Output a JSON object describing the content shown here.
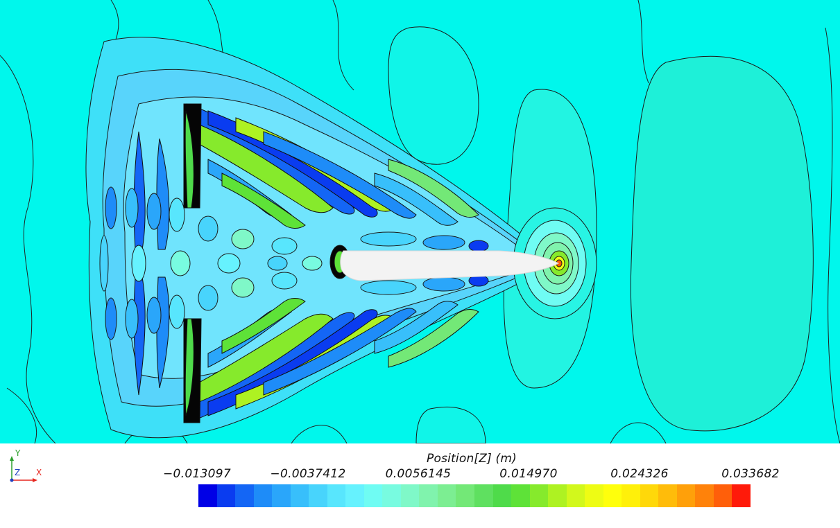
{
  "viewer": {
    "variable_label": "Position[Z] (m)"
  },
  "colorbar": {
    "ticks": [
      "−0.013097",
      "−0.0037412",
      "0.0056145",
      "0.014970",
      "0.024326",
      "0.033682"
    ],
    "min": -0.013097,
    "max": 0.033682,
    "colors": [
      "#0000e6",
      "#0a3cf0",
      "#1466f5",
      "#1e8cf8",
      "#2aa6fa",
      "#38bffb",
      "#48d4fc",
      "#58e6fd",
      "#66f2fe",
      "#6ffcf3",
      "#78fbe0",
      "#7ff8c8",
      "#80f3ad",
      "#7cee92",
      "#73e877",
      "#5fe060",
      "#4fdb4a",
      "#5ee238",
      "#86ea2c",
      "#aef222",
      "#d2f81c",
      "#eefc14",
      "#ffff0c",
      "#fff00a",
      "#ffd80a",
      "#ffbc0a",
      "#ffa00a",
      "#ff820a",
      "#ff5f0a",
      "#ff1a0a"
    ]
  },
  "axes_triad": {
    "y_label": "Y",
    "z_label": "Z",
    "x_label": "X"
  }
}
